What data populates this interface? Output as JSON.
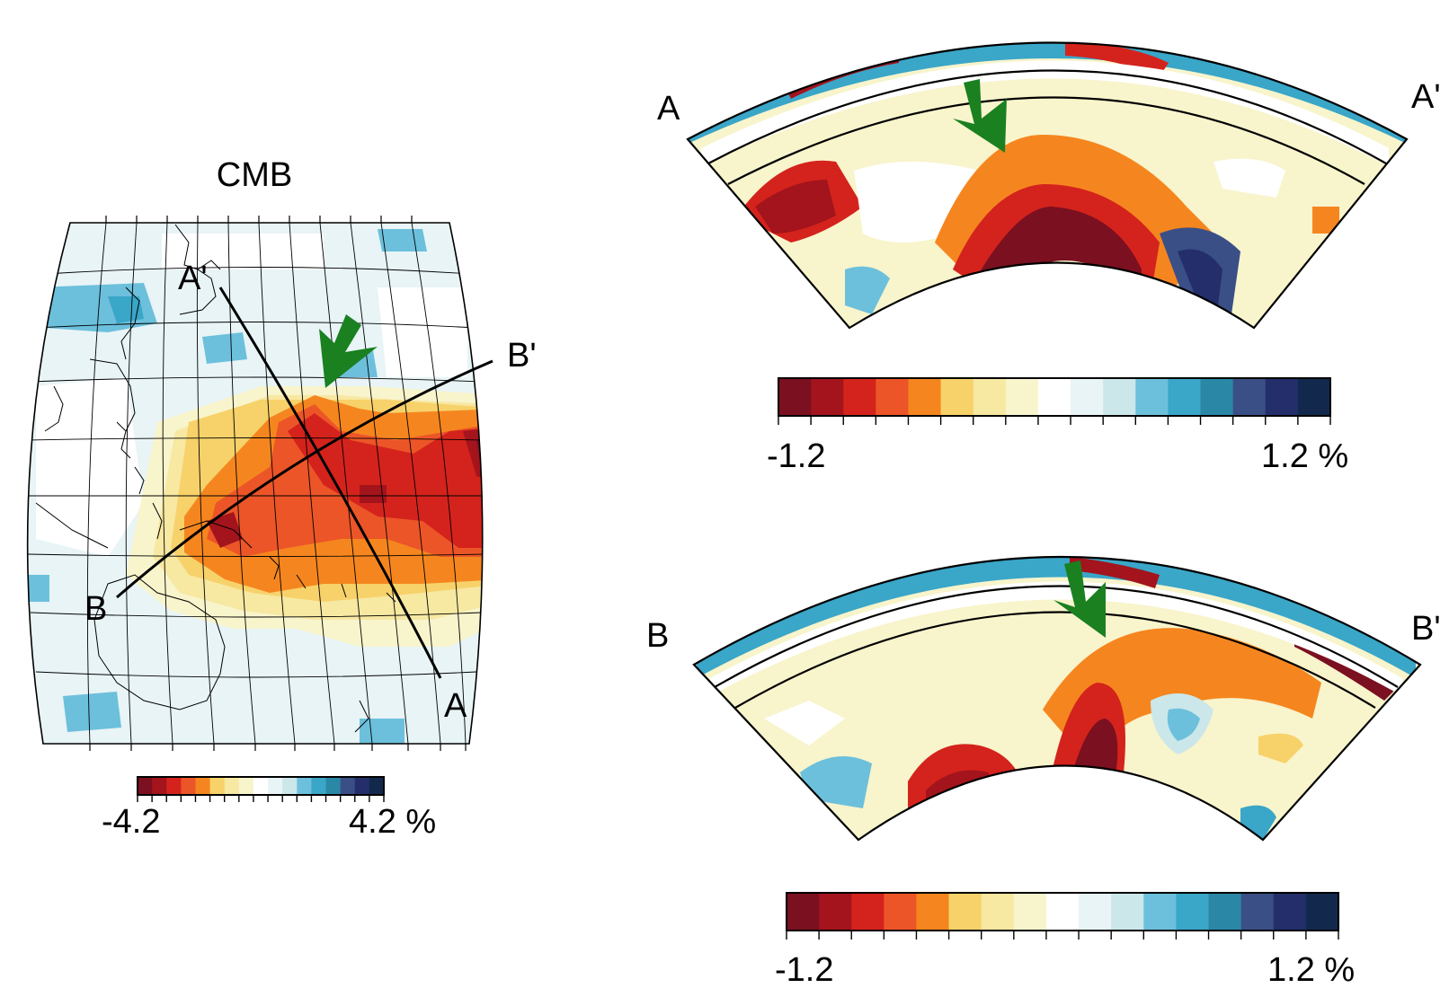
{
  "map": {
    "title": "CMB",
    "labels": {
      "a": "A",
      "a_prime": "A'",
      "b": "B",
      "b_prime": "B'"
    },
    "colorbar": {
      "min_label": "-4.2",
      "max_label": "4.2 %"
    }
  },
  "section_a": {
    "start_label": "A",
    "end_label": "A'",
    "colorbar": {
      "min_label": "-1.2",
      "max_label": "1.2 %"
    }
  },
  "section_b": {
    "start_label": "B",
    "end_label": "B'",
    "colorbar": {
      "min_label": "-1.2",
      "max_label": "1.2 %"
    }
  },
  "palette": [
    "#7a1020",
    "#a3141c",
    "#d4231c",
    "#ec5528",
    "#f5861f",
    "#f7d26a",
    "#f7e8a2",
    "#f8f4cc",
    "#ffffff",
    "#e8f4f6",
    "#cbe7ea",
    "#6cc0dc",
    "#3aa6c8",
    "#2a88a6",
    "#3a4f86",
    "#232e6a",
    "#12294d"
  ],
  "arrow_color": "#1a8020"
}
